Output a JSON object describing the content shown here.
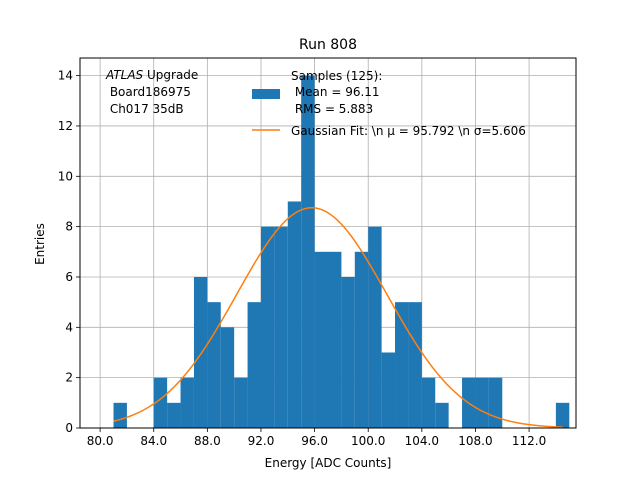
{
  "chart_data": {
    "type": "bar",
    "title": "Run 808",
    "xlabel": "Energy [ADC Counts]",
    "ylabel": "Entries",
    "xlim": [
      78.5,
      115.5
    ],
    "ylim": [
      0,
      14.7
    ],
    "x_ticks": [
      80,
      84,
      88,
      92,
      96,
      100,
      104,
      108,
      112
    ],
    "x_tick_labels": [
      "80.0",
      "84.0",
      "88.0",
      "92.0",
      "96.0",
      "100.0",
      "104.0",
      "108.0",
      "112.0"
    ],
    "y_ticks": [
      0,
      2,
      4,
      6,
      8,
      10,
      12,
      14
    ],
    "y_tick_labels": [
      "0",
      "2",
      "4",
      "6",
      "8",
      "10",
      "12",
      "14"
    ],
    "grid": true,
    "bin_width": 1,
    "bins": [
      {
        "x": 81,
        "count": 1
      },
      {
        "x": 84,
        "count": 2
      },
      {
        "x": 85,
        "count": 1
      },
      {
        "x": 86,
        "count": 2
      },
      {
        "x": 87,
        "count": 6
      },
      {
        "x": 88,
        "count": 5
      },
      {
        "x": 89,
        "count": 4
      },
      {
        "x": 90,
        "count": 2
      },
      {
        "x": 91,
        "count": 5
      },
      {
        "x": 92,
        "count": 8
      },
      {
        "x": 93,
        "count": 8
      },
      {
        "x": 94,
        "count": 9
      },
      {
        "x": 95,
        "count": 14
      },
      {
        "x": 96,
        "count": 7
      },
      {
        "x": 97,
        "count": 7
      },
      {
        "x": 98,
        "count": 6
      },
      {
        "x": 99,
        "count": 7
      },
      {
        "x": 100,
        "count": 8
      },
      {
        "x": 101,
        "count": 3
      },
      {
        "x": 102,
        "count": 5
      },
      {
        "x": 103,
        "count": 5
      },
      {
        "x": 104,
        "count": 2
      },
      {
        "x": 105,
        "count": 1
      },
      {
        "x": 107,
        "count": 2
      },
      {
        "x": 108,
        "count": 2
      },
      {
        "x": 109,
        "count": 2
      },
      {
        "x": 114,
        "count": 1
      }
    ],
    "gaussian_fit": {
      "mu": 95.792,
      "sigma": 5.606,
      "amplitude": 8.75,
      "x_range": [
        81,
        114.5
      ]
    },
    "colors": {
      "histogram": "#1f77b4",
      "fit": "#ff7f0e",
      "grid": "#b0b0b0"
    },
    "legend": {
      "placement": "top-right",
      "entries": [
        {
          "label_lines": [
            "Samples (125):",
            " Mean = 96.11",
            " RMS = 5.883"
          ],
          "kind": "patch"
        },
        {
          "label_lines": [
            "Gaussian Fit: \\n μ = 95.792 \\n σ=5.606"
          ],
          "kind": "line"
        }
      ]
    },
    "annotation": {
      "italic": "ATLAS",
      "rest": " Upgrade",
      "lines": [
        " Board186975",
        " Ch017 35dB"
      ]
    }
  }
}
